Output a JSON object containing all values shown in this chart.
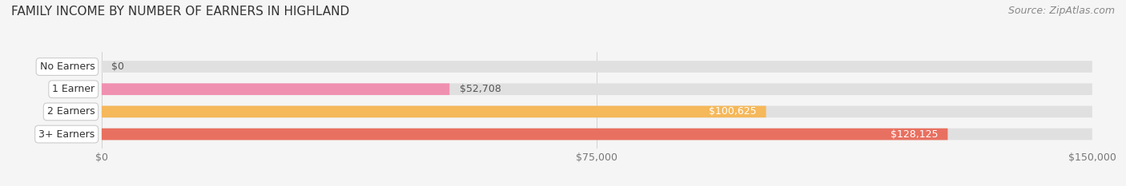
{
  "title": "FAMILY INCOME BY NUMBER OF EARNERS IN HIGHLAND",
  "source": "Source: ZipAtlas.com",
  "categories": [
    "No Earners",
    "1 Earner",
    "2 Earners",
    "3+ Earners"
  ],
  "values": [
    0,
    52708,
    100625,
    128125
  ],
  "bar_colors": [
    "#a8a8d8",
    "#f090b0",
    "#f5b85a",
    "#e87060"
  ],
  "bar_bg_color": "#e0e0e0",
  "label_colors": [
    "#555555",
    "#555555",
    "#ffffff",
    "#ffffff"
  ],
  "xlim": [
    0,
    150000
  ],
  "xticks": [
    0,
    75000,
    150000
  ],
  "xtick_labels": [
    "$0",
    "$75,000",
    "$150,000"
  ],
  "value_labels": [
    "$0",
    "$52,708",
    "$100,625",
    "$128,125"
  ],
  "background_color": "#f5f5f5",
  "bar_height": 0.52,
  "title_fontsize": 11,
  "source_fontsize": 9,
  "label_fontsize": 9,
  "tick_fontsize": 9,
  "rounding_size": 0.22
}
